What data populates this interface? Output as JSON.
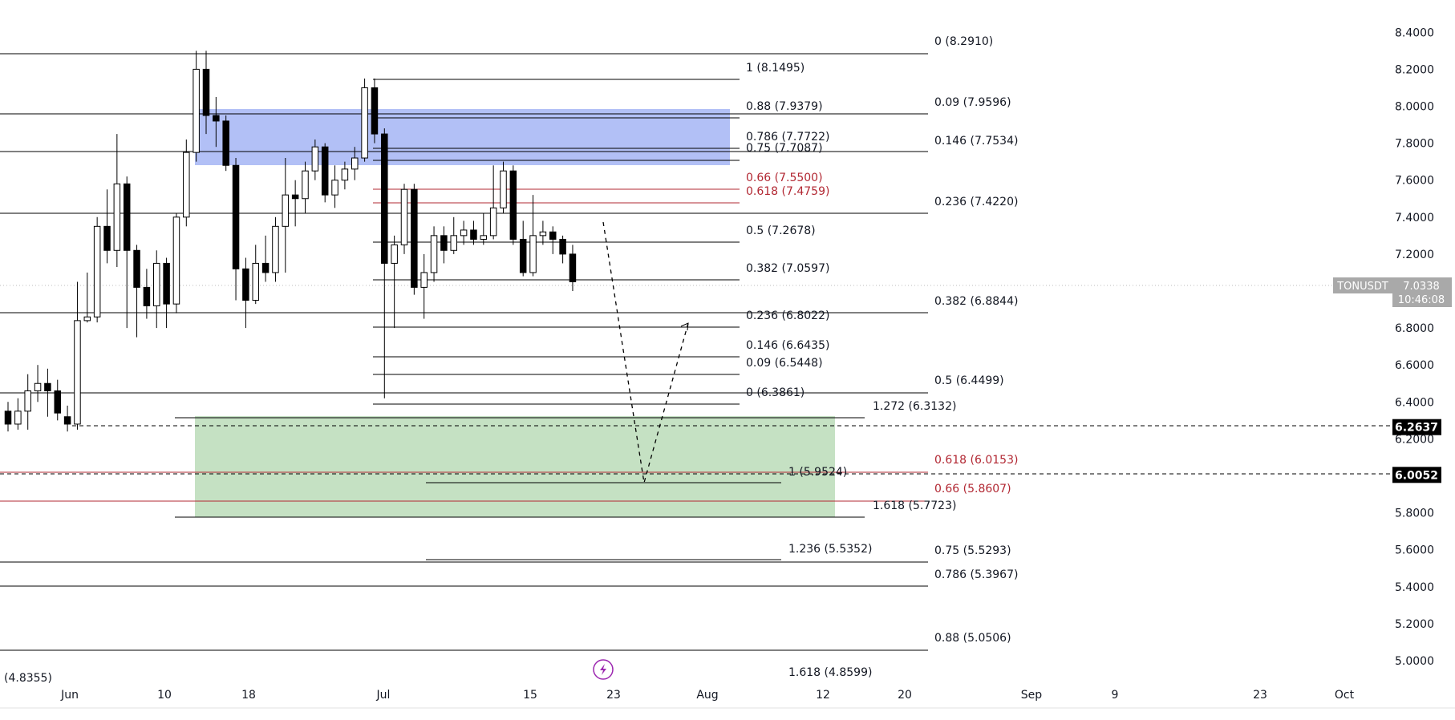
{
  "chart_data": {
    "type": "candlestick",
    "symbol": "TONUSDT",
    "y_ticks": [
      "8.4000",
      "8.2000",
      "8.0000",
      "7.8000",
      "7.6000",
      "7.4000",
      "7.2000",
      "7.0000",
      "6.8000",
      "6.6000",
      "6.4000",
      "6.2000",
      "6.0000",
      "5.8000",
      "5.6000",
      "5.4000",
      "5.2000",
      "5.0000"
    ],
    "x_ticks": [
      "Jun",
      "10",
      "18",
      "Jul",
      "15",
      "23",
      "Aug",
      "12",
      "20",
      "Sep",
      "9",
      "23",
      "Oct"
    ],
    "ylim": [
      4.85,
      8.55
    ],
    "last_price": "7.0338",
    "countdown": "10:46:08",
    "price_labels": [
      {
        "value": 6.2637,
        "text": "6.2637"
      },
      {
        "value": 6.0052,
        "text": "6.0052"
      }
    ],
    "candles": [
      [
        6.35,
        6.28,
        6.4,
        6.24
      ],
      [
        6.28,
        6.35,
        6.42,
        6.25
      ],
      [
        6.35,
        6.46,
        6.55,
        6.25
      ],
      [
        6.46,
        6.5,
        6.6,
        6.4
      ],
      [
        6.5,
        6.46,
        6.58,
        6.32
      ],
      [
        6.46,
        6.34,
        6.52,
        6.3
      ],
      [
        6.32,
        6.28,
        6.38,
        6.24
      ],
      [
        6.28,
        6.84,
        7.05,
        6.25
      ],
      [
        6.84,
        6.86,
        7.1,
        6.83
      ],
      [
        6.86,
        7.35,
        7.4,
        6.83
      ],
      [
        7.35,
        7.22,
        7.55,
        7.15
      ],
      [
        7.22,
        7.58,
        7.85,
        7.13
      ],
      [
        7.58,
        7.22,
        7.62,
        6.8
      ],
      [
        7.22,
        7.02,
        7.25,
        6.75
      ],
      [
        7.02,
        6.92,
        7.12,
        6.85
      ],
      [
        6.92,
        7.15,
        7.22,
        6.8
      ],
      [
        7.15,
        6.93,
        7.18,
        6.8
      ],
      [
        6.93,
        7.4,
        7.42,
        6.88
      ],
      [
        7.4,
        7.75,
        7.82,
        7.35
      ],
      [
        7.75,
        8.2,
        8.3,
        7.7
      ],
      [
        8.2,
        7.95,
        8.3,
        7.85
      ],
      [
        7.95,
        7.92,
        8.05,
        7.78
      ],
      [
        7.92,
        7.68,
        7.95,
        7.65
      ],
      [
        7.68,
        7.12,
        7.72,
        6.95
      ],
      [
        7.12,
        6.95,
        7.18,
        6.8
      ],
      [
        6.95,
        7.15,
        7.25,
        6.93
      ],
      [
        7.15,
        7.1,
        7.3,
        7.05
      ],
      [
        7.1,
        7.35,
        7.4,
        7.05
      ],
      [
        7.35,
        7.52,
        7.72,
        7.1
      ],
      [
        7.52,
        7.5,
        7.6,
        7.35
      ],
      [
        7.5,
        7.65,
        7.7,
        7.42
      ],
      [
        7.65,
        7.78,
        7.82,
        7.6
      ],
      [
        7.78,
        7.52,
        7.8,
        7.48
      ],
      [
        7.52,
        7.6,
        7.68,
        7.45
      ],
      [
        7.6,
        7.66,
        7.7,
        7.55
      ],
      [
        7.66,
        7.72,
        7.78,
        7.6
      ],
      [
        7.72,
        8.1,
        8.15,
        7.7
      ],
      [
        8.1,
        7.85,
        8.15,
        7.8
      ],
      [
        7.85,
        7.15,
        7.88,
        6.42
      ],
      [
        7.15,
        7.25,
        7.3,
        6.8
      ],
      [
        7.25,
        7.55,
        7.58,
        7.2
      ],
      [
        7.55,
        7.02,
        7.58,
        6.98
      ],
      [
        7.02,
        7.1,
        7.2,
        6.85
      ],
      [
        7.1,
        7.3,
        7.35,
        7.05
      ],
      [
        7.3,
        7.22,
        7.35,
        7.15
      ],
      [
        7.22,
        7.3,
        7.4,
        7.2
      ],
      [
        7.3,
        7.33,
        7.38,
        7.25
      ],
      [
        7.33,
        7.28,
        7.38,
        7.25
      ],
      [
        7.28,
        7.3,
        7.42,
        7.25
      ],
      [
        7.3,
        7.45,
        7.68,
        7.28
      ],
      [
        7.45,
        7.65,
        7.7,
        7.42
      ],
      [
        7.65,
        7.28,
        7.68,
        7.25
      ],
      [
        7.28,
        7.1,
        7.38,
        7.08
      ],
      [
        7.1,
        7.3,
        7.52,
        7.08
      ],
      [
        7.3,
        7.32,
        7.38,
        7.25
      ],
      [
        7.32,
        7.28,
        7.35,
        7.2
      ],
      [
        7.28,
        7.2,
        7.3,
        7.15
      ],
      [
        7.2,
        7.05,
        7.25,
        7.0
      ]
    ],
    "fib_labels": [
      {
        "text": "0 (8.2910)",
        "color": "dark"
      },
      {
        "text": "0.09 (7.9596)",
        "color": "dark"
      },
      {
        "text": "0.146 (7.7534)",
        "color": "dark"
      },
      {
        "text": "0.236 (7.4220)",
        "color": "dark"
      },
      {
        "text": "0.382 (6.8844)",
        "color": "dark"
      },
      {
        "text": "0.5 (6.4499)",
        "color": "dark"
      },
      {
        "text": "0.618 (6.0153)",
        "color": "red"
      },
      {
        "text": "0.66 (5.8607)",
        "color": "red"
      },
      {
        "text": "0.75 (5.5293)",
        "color": "dark"
      },
      {
        "text": "0.786 (5.3967)",
        "color": "dark"
      },
      {
        "text": "0.88 (5.0506)",
        "color": "dark"
      },
      {
        "text": "1 (8.1495)",
        "color": "dark"
      },
      {
        "text": "0.88 (7.9379)",
        "color": "dark"
      },
      {
        "text": "0.786 (7.7722)",
        "color": "dark"
      },
      {
        "text": "0.75 (7.7087)",
        "color": "dark"
      },
      {
        "text": "0.66 (7.5500)",
        "color": "red"
      },
      {
        "text": "0.618 (7.4759)",
        "color": "red"
      },
      {
        "text": "0.5 (7.2678)",
        "color": "dark"
      },
      {
        "text": "0.382 (7.0597)",
        "color": "dark"
      },
      {
        "text": "0.236 (6.8022)",
        "color": "dark"
      },
      {
        "text": "0.146 (6.6435)",
        "color": "dark"
      },
      {
        "text": "0.09 (6.5448)",
        "color": "dark"
      },
      {
        "text": "0 (6.3861)",
        "color": "dark"
      },
      {
        "text": "1.272 (6.3132)",
        "color": "dark"
      },
      {
        "text": "1 (5.9524)",
        "color": "dark"
      },
      {
        "text": "1.618 (5.7723)",
        "color": "dark"
      },
      {
        "text": "1.236 (5.5352)",
        "color": "dark"
      },
      {
        "text": "1.618 (4.8599)",
        "color": "dark"
      },
      {
        "text": "(4.8355)",
        "color": "dark"
      }
    ],
    "colors": {
      "bull_fill": "#ffffff",
      "bear_fill": "#000000",
      "candle_border": "#000000",
      "blue_zone": "#aebdf5",
      "green_zone": "#c2dfc0",
      "red_line": "#b22833",
      "axis_label_bg": "#a9a9a9",
      "price_tag_bg": "#000000"
    }
  }
}
